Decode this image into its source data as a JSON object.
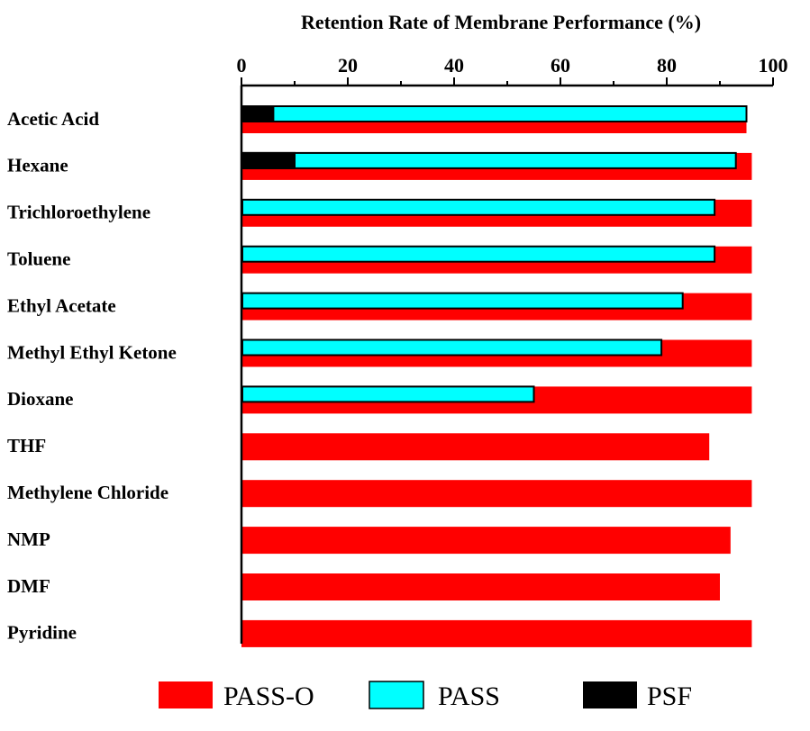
{
  "chart_data": {
    "type": "bar",
    "orientation": "horizontal",
    "title": "Retention Rate of Membrane Performance (%)",
    "xlabel": "",
    "ylabel": "",
    "xlim": [
      0,
      100
    ],
    "x_ticks": [
      "0",
      "20",
      "40",
      "60",
      "80",
      "100"
    ],
    "x_axis_position": "top",
    "grid": false,
    "legend_position": "bottom",
    "categories": [
      "Acetic Acid",
      "Hexane",
      "Trichloroethylene",
      "Toluene",
      "Ethyl Acetate",
      "Methyl Ethyl Ketone",
      "Dioxane",
      "THF",
      "Methylene Chloride",
      "NMP",
      "DMF",
      "Pyridine"
    ],
    "series": [
      {
        "name": "PASS-O",
        "color": "#ff0000",
        "values": [
          95,
          96,
          96,
          96,
          96,
          96,
          96,
          88,
          96,
          92,
          90,
          96
        ]
      },
      {
        "name": "PASS",
        "color": "#00ffff",
        "values": [
          95,
          93,
          89,
          89,
          83,
          79,
          55,
          0,
          0,
          0,
          0,
          0
        ]
      },
      {
        "name": "PSF",
        "color": "#000000",
        "values": [
          6,
          10,
          0,
          0,
          0,
          0,
          0,
          0,
          0,
          0,
          0,
          0
        ]
      }
    ]
  }
}
